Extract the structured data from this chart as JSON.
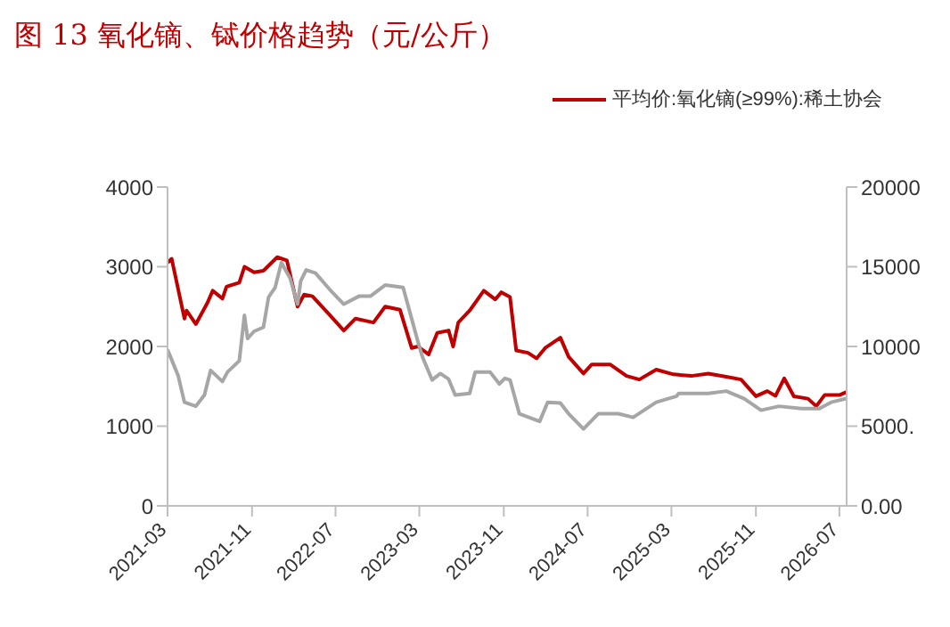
{
  "chart_data": {
    "type": "line",
    "title": "图 13 氧化镝、铽价格趋势（元/公斤）",
    "xlim": [
      "2021-03-01",
      "2026-07-22"
    ],
    "xticks": [
      "2021-03",
      "2021-11",
      "2022-07",
      "2023-03",
      "2023-11",
      "2024-07",
      "2025-03",
      "2025-11",
      "2026-07"
    ],
    "ylim": [
      0,
      4000
    ],
    "yticks": [
      0,
      1000,
      2000,
      3000,
      4000
    ],
    "y2lim": [
      0,
      20000
    ],
    "y2ticks": [
      {
        "value": 0,
        "label": "0.00"
      },
      {
        "value": 5000,
        "label": "5000."
      },
      {
        "value": 10000,
        "label": "10000"
      },
      {
        "value": 15000,
        "label": "15000"
      },
      {
        "value": 20000,
        "label": "20000"
      }
    ],
    "legend": "top right",
    "marker": "none",
    "line_style": "solid",
    "series": [
      {
        "name": "平均价:氧化镝(≥99%):稀土协会",
        "color": "#c00000",
        "x": [
          "2021-03-01",
          "2021-03-13",
          "2021-04-19",
          "2021-04-25",
          "2021-05-22",
          "2021-06-25",
          "2021-07-10",
          "2021-08-07",
          "2021-08-19",
          "2021-09-25",
          "2021-10-10",
          "2021-11-07",
          "2021-12-04",
          "2022-01-13",
          "2022-02-10",
          "2022-03-13",
          "2022-04-01",
          "2022-04-25",
          "2022-06-13",
          "2022-07-25",
          "2022-08-28",
          "2022-10-19",
          "2022-11-22",
          "2023-01-04",
          "2023-02-07",
          "2023-02-25",
          "2023-03-28",
          "2023-04-22",
          "2023-05-25",
          "2023-06-07",
          "2023-06-22",
          "2023-07-25",
          "2023-09-04",
          "2023-10-07",
          "2023-10-25",
          "2023-11-19",
          "2023-12-07",
          "2024-01-10",
          "2024-02-04",
          "2024-03-01",
          "2024-04-13",
          "2024-05-07",
          "2024-06-19",
          "2024-07-13",
          "2024-09-04",
          "2024-10-22",
          "2024-11-28",
          "2025-01-16",
          "2025-03-07",
          "2025-04-28",
          "2025-06-16",
          "2025-08-07",
          "2025-09-19",
          "2025-11-01",
          "2025-12-04",
          "2025-12-28",
          "2026-01-22",
          "2026-02-19",
          "2026-04-01",
          "2026-04-25",
          "2026-05-19",
          "2026-07-01",
          "2026-07-22"
        ],
        "values": [
          3050,
          3100,
          2350,
          2450,
          2280,
          2550,
          2700,
          2600,
          2750,
          2800,
          3000,
          2930,
          2950,
          3120,
          3080,
          2500,
          2650,
          2630,
          2400,
          2200,
          2350,
          2300,
          2500,
          2460,
          1980,
          2000,
          1900,
          2170,
          2200,
          2000,
          2300,
          2450,
          2700,
          2590,
          2680,
          2620,
          1950,
          1920,
          1850,
          1985,
          2110,
          1870,
          1660,
          1775,
          1775,
          1630,
          1585,
          1710,
          1650,
          1630,
          1660,
          1620,
          1585,
          1375,
          1440,
          1380,
          1600,
          1375,
          1345,
          1250,
          1390,
          1390,
          1430
        ]
      },
      {
        "color": "#a6a6a6",
        "axis": "y2",
        "x": [
          "2021-03-01",
          "2021-04-01",
          "2021-04-19",
          "2021-05-22",
          "2021-06-16",
          "2021-07-04",
          "2021-08-07",
          "2021-08-22",
          "2021-09-25",
          "2021-10-10",
          "2021-10-19",
          "2021-11-07",
          "2021-12-04",
          "2021-12-19",
          "2022-01-07",
          "2022-01-25",
          "2022-02-19",
          "2022-03-13",
          "2022-03-22",
          "2022-04-07",
          "2022-05-04",
          "2022-06-13",
          "2022-07-25",
          "2022-09-07",
          "2022-10-10",
          "2022-11-22",
          "2023-01-13",
          "2023-02-01",
          "2023-02-25",
          "2023-03-10",
          "2023-04-07",
          "2023-05-01",
          "2023-05-25",
          "2023-06-13",
          "2023-07-25",
          "2023-08-10",
          "2023-09-22",
          "2023-10-19",
          "2023-11-04",
          "2023-11-19",
          "2023-12-16",
          "2024-02-13",
          "2024-03-07",
          "2024-04-13",
          "2024-05-07",
          "2024-06-19",
          "2024-08-01",
          "2024-09-28",
          "2024-11-10",
          "2025-01-16",
          "2025-03-16",
          "2025-03-22",
          "2025-06-16",
          "2025-08-07",
          "2025-09-28",
          "2025-11-16",
          "2026-01-07",
          "2026-03-13",
          "2026-05-04",
          "2026-06-07",
          "2026-07-22"
        ],
        "values": [
          9800,
          8150,
          6500,
          6250,
          6950,
          8500,
          7800,
          8400,
          9100,
          11950,
          10500,
          10950,
          11200,
          13100,
          13700,
          15250,
          14300,
          12650,
          14100,
          14800,
          14600,
          13600,
          12650,
          13150,
          13150,
          13850,
          13700,
          12200,
          10300,
          9350,
          7900,
          8300,
          7950,
          6950,
          7050,
          8400,
          8400,
          7650,
          8000,
          7900,
          5780,
          5300,
          6500,
          6450,
          5780,
          4830,
          5780,
          5780,
          5550,
          6500,
          6880,
          7050,
          7050,
          7200,
          6730,
          6000,
          6250,
          6100,
          6100,
          6500,
          6730
        ]
      }
    ]
  }
}
